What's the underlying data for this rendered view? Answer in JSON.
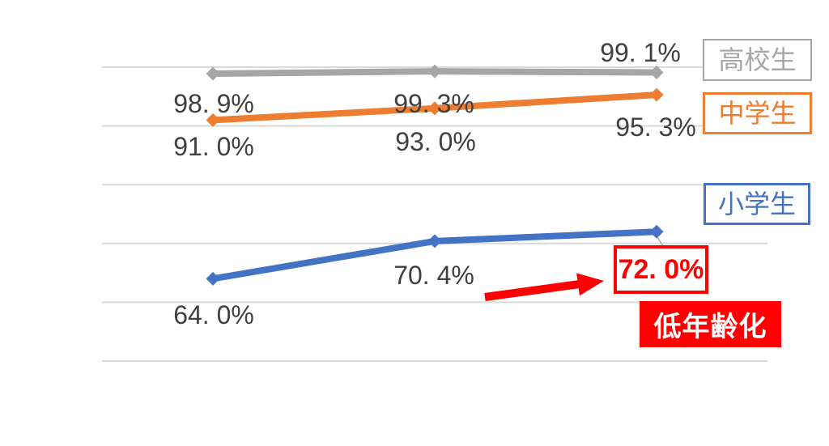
{
  "page": {
    "background_color": "#ffffff",
    "description": "Line chart of smartphone/device ownership-style percentages by school level over three periods, with a red annotation highlighting the youngest group's latest value"
  },
  "chart_data": {
    "type": "line",
    "categories": [
      "",
      "",
      ""
    ],
    "series": [
      {
        "name": "高校生",
        "color": "#A6A6A6",
        "values": [
          98.9,
          99.3,
          99.1
        ],
        "labels": [
          "98. 9%",
          "99. 3%",
          "99. 1%"
        ]
      },
      {
        "name": "中学生",
        "color": "#ED7D31",
        "values": [
          91.0,
          93.0,
          95.3
        ],
        "labels": [
          "91. 0%",
          "93. 0%",
          "95. 3%"
        ]
      },
      {
        "name": "小学生",
        "color": "#4472C4",
        "values": [
          64.0,
          70.4,
          72.0
        ],
        "labels": [
          "64. 0%",
          "70. 4%",
          "72. 0%"
        ]
      }
    ],
    "ylim": [
      50,
      100
    ],
    "gridlines_percent": [
      100,
      90,
      80,
      70,
      60,
      50
    ],
    "grid": true,
    "gridline_color": "#D9D9D9",
    "label_color": "#404040",
    "legend_position": "right",
    "xlabel": "",
    "ylabel": "",
    "title": ""
  },
  "annotations": {
    "banner_text": "低年齢化",
    "accent_color": "#FF0000",
    "leader_line_color": "#A6A6A6"
  }
}
